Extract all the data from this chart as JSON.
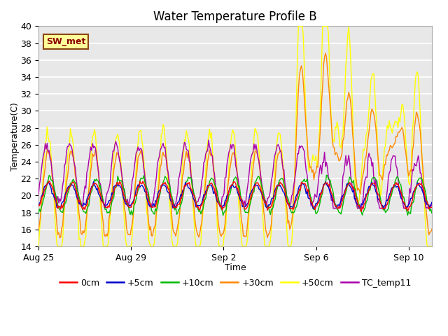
{
  "title": "Water Temperature Profile B",
  "xlabel": "Time",
  "ylabel": "Temperature(C)",
  "ylim": [
    14,
    40
  ],
  "yticks": [
    14,
    16,
    18,
    20,
    22,
    24,
    26,
    28,
    30,
    32,
    34,
    36,
    38,
    40
  ],
  "plot_bg_color": "#e8e8e8",
  "series": {
    "0cm": {
      "color": "#ff0000",
      "lw": 1.0
    },
    "+5cm": {
      "color": "#0000cc",
      "lw": 1.0
    },
    "+10cm": {
      "color": "#00bb00",
      "lw": 1.0
    },
    "+30cm": {
      "color": "#ff8800",
      "lw": 1.0
    },
    "+50cm": {
      "color": "#ffff00",
      "lw": 1.0
    },
    "TC_temp11": {
      "color": "#aa00aa",
      "lw": 1.0
    }
  },
  "annotation": {
    "text": "SW_met",
    "facecolor": "#ffff99",
    "edgecolor": "#8B4513",
    "textcolor": "#8B0000",
    "fontsize": 9,
    "fontweight": "bold"
  },
  "xtick_pos": [
    0,
    4,
    8,
    12,
    16
  ],
  "xtick_labels": [
    "Aug 25",
    "Aug 29",
    "Sep 2",
    "Sep 6",
    "Sep 10"
  ],
  "xlim": [
    0,
    17
  ],
  "legend_fontsize": 9,
  "title_fontsize": 12,
  "axis_label_fontsize": 9,
  "tick_fontsize": 9
}
